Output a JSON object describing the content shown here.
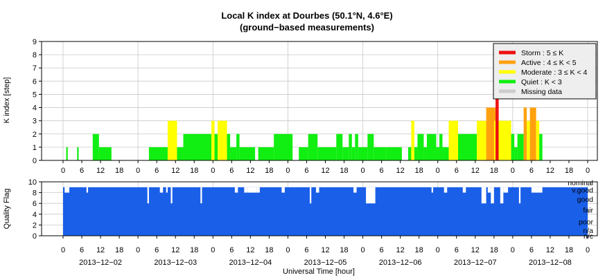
{
  "title_line1": "Local K index at Dourbes (50.1°N, 4.6°E)",
  "title_line2": "(ground−based measurements)",
  "colors": {
    "storm": "#ee1111",
    "active": "#ffa10e",
    "moderate": "#ffff00",
    "quiet": "#11ee11",
    "missing": "#cccccc",
    "quality": "#1a5fe8",
    "grid": "#c8c8c8"
  },
  "chart_data": [
    {
      "type": "bar",
      "name": "k-index",
      "ylabel": "K index [step]",
      "ylim": [
        0,
        9
      ],
      "yticks": [
        "0",
        "1",
        "2",
        "3",
        "4",
        "5",
        "6",
        "7",
        "8",
        "9"
      ],
      "xlim": [
        0,
        168
      ],
      "xtick_labels": [
        "0",
        "6",
        "12",
        "18"
      ],
      "final_xtick_label": "0",
      "grid": true,
      "legend_placement": "top-right",
      "legend": [
        {
          "key": "storm",
          "label": "Storm : 5 ≤ K"
        },
        {
          "key": "active",
          "label": "Active : 4 ≤ K < 5"
        },
        {
          "key": "moderate",
          "label": "Moderate : 3 ≤ K < 4"
        },
        {
          "key": "quiet",
          "label": "Quiet : K < 3"
        },
        {
          "key": "missing",
          "label": "Missing data"
        }
      ],
      "bars": [
        {
          "x": [
            0,
            1
          ],
          "value": 0
        },
        {
          "x": [
            1,
            1.5
          ],
          "value": 1
        },
        {
          "x": [
            4.5,
            5
          ],
          "value": 1
        },
        {
          "x": [
            9.5,
            11.5
          ],
          "value": 2
        },
        {
          "x": [
            11.5,
            15.5
          ],
          "value": 1
        },
        {
          "x": [
            27.5,
            33.5
          ],
          "value": 1
        },
        {
          "x": [
            33.5,
            36.5
          ],
          "value": 3
        },
        {
          "x": [
            36.5,
            38.5
          ],
          "value": 1
        },
        {
          "x": [
            38.5,
            47.5
          ],
          "value": 2
        },
        {
          "x": [
            47.5,
            48.5
          ],
          "value": 3
        },
        {
          "x": [
            48.5,
            49.5
          ],
          "value": 2
        },
        {
          "x": [
            49.5,
            52.5
          ],
          "value": 3
        },
        {
          "x": [
            52.5,
            53.5
          ],
          "value": 2
        },
        {
          "x": [
            53.5,
            55.5
          ],
          "value": 1
        },
        {
          "x": [
            55.5,
            56.5
          ],
          "value": 2
        },
        {
          "x": [
            56.5,
            61.5
          ],
          "value": 1
        },
        {
          "x": [
            62.5,
            67.5
          ],
          "value": 1
        },
        {
          "x": [
            67.5,
            73.5
          ],
          "value": 2
        },
        {
          "x": [
            75.5,
            78.5
          ],
          "value": 1
        },
        {
          "x": [
            78.5,
            81.5
          ],
          "value": 2
        },
        {
          "x": [
            81.5,
            87.5
          ],
          "value": 1
        },
        {
          "x": [
            87.5,
            89.5
          ],
          "value": 2
        },
        {
          "x": [
            89.5,
            91.5
          ],
          "value": 1
        },
        {
          "x": [
            91.5,
            92.5
          ],
          "value": 2
        },
        {
          "x": [
            92.5,
            93.5
          ],
          "value": 1
        },
        {
          "x": [
            93.5,
            94.5
          ],
          "value": 2
        },
        {
          "x": [
            94.5,
            97.5
          ],
          "value": 1
        },
        {
          "x": [
            97.5,
            99.5
          ],
          "value": 2
        },
        {
          "x": [
            99.5,
            103.5
          ],
          "value": 1
        },
        {
          "x": [
            103.5,
            108.5
          ],
          "value": 1
        },
        {
          "x": [
            110.5,
            111.5
          ],
          "value": 1
        },
        {
          "x": [
            111.5,
            112.5
          ],
          "value": 3
        },
        {
          "x": [
            112.5,
            113.5
          ],
          "value": 1
        },
        {
          "x": [
            113.5,
            115.5
          ],
          "value": 2
        },
        {
          "x": [
            115.5,
            116.5
          ],
          "value": 1
        },
        {
          "x": [
            116.5,
            119.5
          ],
          "value": 2
        },
        {
          "x": [
            119.5,
            120.5
          ],
          "value": 1
        },
        {
          "x": [
            120.5,
            121.5
          ],
          "value": 2
        },
        {
          "x": [
            121.5,
            123.5
          ],
          "value": 1
        },
        {
          "x": [
            123.5,
            126.5
          ],
          "value": 3
        },
        {
          "x": [
            126.5,
            132.5
          ],
          "value": 2
        },
        {
          "x": [
            132.5,
            135.5
          ],
          "value": 3
        },
        {
          "x": [
            135.5,
            138.5
          ],
          "value": 4
        },
        {
          "x": [
            138.5,
            139.5
          ],
          "value": 5
        },
        {
          "x": [
            139.5,
            143.5
          ],
          "value": 3
        },
        {
          "x": [
            143.5,
            144.5
          ],
          "value": 2
        },
        {
          "x": [
            144.5,
            145.5
          ],
          "value": 1
        },
        {
          "x": [
            145.5,
            147.5
          ],
          "value": 2
        },
        {
          "x": [
            147.5,
            148.5
          ],
          "value": 4
        },
        {
          "x": [
            148.5,
            149.5
          ],
          "value": 3
        },
        {
          "x": [
            149.5,
            151.5
          ],
          "value": 4
        },
        {
          "x": [
            151.5,
            152.5
          ],
          "value": 3
        },
        {
          "x": [
            152.5,
            153.5
          ],
          "value": 2
        }
      ]
    },
    {
      "type": "area",
      "name": "quality-flag",
      "ylabel": "Quality Flag",
      "ylim": [
        0,
        10
      ],
      "yticks": [
        "0",
        "2",
        "4",
        "6",
        "8",
        "10"
      ],
      "xlim": [
        0,
        168
      ],
      "xlabel": "Universal Time [hour]",
      "grid": true,
      "level_labels": [
        "nominal",
        "v.good",
        "good",
        "fair",
        "poor",
        "n/a",
        "n/c"
      ],
      "day_labels": [
        "2013−12−02",
        "2013−12−03",
        "2013−12−04",
        "2013−12−05",
        "2013−12−06",
        "2013−12−07",
        "2013−12−08"
      ],
      "baseline": 9,
      "dips": [
        {
          "x": [
            0.5,
            2
          ],
          "value": 8
        },
        {
          "x": [
            7.5,
            8
          ],
          "value": 8
        },
        {
          "x": [
            27,
            27.5
          ],
          "value": 6
        },
        {
          "x": [
            31,
            32
          ],
          "value": 8
        },
        {
          "x": [
            33,
            33.5
          ],
          "value": 8
        },
        {
          "x": [
            34.5,
            35
          ],
          "value": 6
        },
        {
          "x": [
            44,
            44.5
          ],
          "value": 6
        },
        {
          "x": [
            55,
            56
          ],
          "value": 8
        },
        {
          "x": [
            58,
            59
          ],
          "value": 8
        },
        {
          "x": [
            59,
            62
          ],
          "value": 8
        },
        {
          "x": [
            62,
            63
          ],
          "value": 8
        },
        {
          "x": [
            70,
            71
          ],
          "value": 8
        },
        {
          "x": [
            79,
            79.5
          ],
          "value": 6
        },
        {
          "x": [
            81,
            82
          ],
          "value": 8
        },
        {
          "x": [
            93,
            94
          ],
          "value": 8
        },
        {
          "x": [
            97,
            100
          ],
          "value": 6
        },
        {
          "x": [
            118,
            118.5
          ],
          "value": 8
        },
        {
          "x": [
            122,
            123
          ],
          "value": 8
        },
        {
          "x": [
            128,
            129
          ],
          "value": 8
        },
        {
          "x": [
            134,
            135.5
          ],
          "value": 6
        },
        {
          "x": [
            136,
            137
          ],
          "value": 8
        },
        {
          "x": [
            137,
            138
          ],
          "value": 6
        },
        {
          "x": [
            140,
            141
          ],
          "value": 6
        },
        {
          "x": [
            141,
            142.5
          ],
          "value": 8
        },
        {
          "x": [
            146,
            146.5
          ],
          "value": 6
        },
        {
          "x": [
            150,
            153.5
          ],
          "value": 8
        }
      ],
      "data_range": [
        0,
        168
      ]
    }
  ]
}
